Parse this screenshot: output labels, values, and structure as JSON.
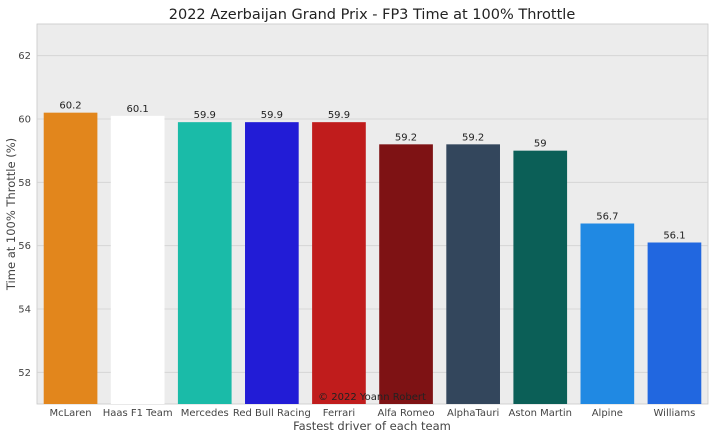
{
  "chart_data": {
    "type": "bar",
    "title": "2022 Azerbaijan Grand Prix - FP3 Time at 100% Throttle",
    "xlabel": "Fastest driver of each team",
    "ylabel": "Time at 100% Throttle (%)",
    "ylim": [
      51,
      63
    ],
    "yticks": [
      52,
      54,
      56,
      58,
      60,
      62
    ],
    "grid": true,
    "categories": [
      "McLaren",
      "Haas F1 Team",
      "Mercedes",
      "Red Bull Racing",
      "Ferrari",
      "Alfa Romeo",
      "AlphaTauri",
      "Aston Martin",
      "Alpine",
      "Williams"
    ],
    "values": [
      60.2,
      60.1,
      59.9,
      59.9,
      59.9,
      59.2,
      59.2,
      59,
      56.7,
      56.1
    ],
    "data_labels": [
      "60.2",
      "60.1",
      "59.9",
      "59.9",
      "59.9",
      "59.2",
      "59.2",
      "59",
      "56.7",
      "56.1"
    ],
    "colors": [
      "#e2861c",
      "#ffffff",
      "#1abba8",
      "#221cd6",
      "#c01c1c",
      "#7e1214",
      "#33465c",
      "#0b5f57",
      "#2089e3",
      "#2167e0"
    ],
    "watermark": "© 2022 Yoann Robert",
    "background_color": "#ececec"
  }
}
